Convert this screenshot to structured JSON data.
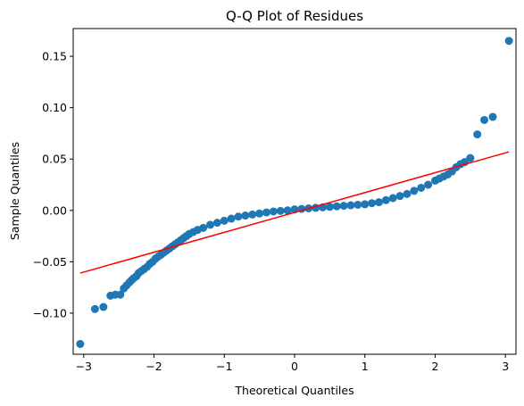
{
  "chart_data": {
    "type": "scatter",
    "title": "Q-Q Plot of Residues",
    "xlabel": "Theoretical Quantiles",
    "ylabel": "Sample Quantiles",
    "xlim": [
      -3.15,
      3.15
    ],
    "ylim": [
      -0.14,
      0.177
    ],
    "xticks": [
      -3,
      -2,
      -1,
      0,
      1,
      2,
      3
    ],
    "yticks": [
      -0.1,
      -0.05,
      0.0,
      0.05,
      0.1,
      0.15
    ],
    "xtick_labels": [
      "−3",
      "−2",
      "−1",
      "0",
      "1",
      "2",
      "3"
    ],
    "ytick_labels": [
      "−0.10",
      "−0.05",
      "0.00",
      "0.05",
      "0.10",
      "0.15"
    ],
    "grid": false,
    "marker_color": "#1f77b4",
    "line_color": "#ff0000",
    "reference_line": {
      "x": [
        -3.05,
        3.05
      ],
      "y": [
        -0.061,
        0.057
      ]
    },
    "series": [
      {
        "x": [
          -3.05,
          -2.84,
          -2.72,
          -2.62,
          -2.55,
          -2.48,
          -2.43,
          -2.39,
          -2.35,
          -2.32,
          -2.29,
          -2.25,
          -2.22,
          -2.18,
          -2.14,
          -2.1,
          -2.06,
          -2.02,
          -1.98,
          -1.94,
          -1.9,
          -1.86,
          -1.82,
          -1.78,
          -1.74,
          -1.7,
          -1.66,
          -1.62,
          -1.58,
          -1.54,
          -1.5,
          -1.44,
          -1.38,
          -1.3,
          -1.2,
          -1.1,
          -1.0,
          -0.9,
          -0.8,
          -0.7,
          -0.6,
          -0.5,
          -0.4,
          -0.3,
          -0.2,
          -0.1,
          0.0,
          0.1,
          0.2,
          0.3,
          0.4,
          0.5,
          0.6,
          0.7,
          0.8,
          0.9,
          1.0,
          1.1,
          1.2,
          1.3,
          1.4,
          1.5,
          1.6,
          1.7,
          1.8,
          1.9,
          2.0,
          2.06,
          2.12,
          2.18,
          2.24,
          2.3,
          2.36,
          2.42,
          2.5,
          2.6,
          2.7,
          2.82,
          3.05
        ],
        "y": [
          -0.13,
          -0.096,
          -0.094,
          -0.083,
          -0.082,
          -0.082,
          -0.076,
          -0.073,
          -0.07,
          -0.068,
          -0.066,
          -0.064,
          -0.061,
          -0.059,
          -0.057,
          -0.055,
          -0.052,
          -0.05,
          -0.047,
          -0.045,
          -0.043,
          -0.041,
          -0.039,
          -0.037,
          -0.035,
          -0.033,
          -0.031,
          -0.029,
          -0.027,
          -0.025,
          -0.023,
          -0.021,
          -0.019,
          -0.017,
          -0.014,
          -0.012,
          -0.01,
          -0.008,
          -0.006,
          -0.005,
          -0.004,
          -0.003,
          -0.002,
          -0.001,
          -0.0005,
          0.0,
          0.001,
          0.0015,
          0.002,
          0.0025,
          0.003,
          0.0035,
          0.004,
          0.0045,
          0.005,
          0.0055,
          0.006,
          0.007,
          0.008,
          0.01,
          0.012,
          0.014,
          0.016,
          0.019,
          0.022,
          0.025,
          0.029,
          0.031,
          0.033,
          0.035,
          0.038,
          0.042,
          0.045,
          0.047,
          0.051,
          0.074,
          0.088,
          0.091,
          0.165
        ]
      }
    ]
  }
}
